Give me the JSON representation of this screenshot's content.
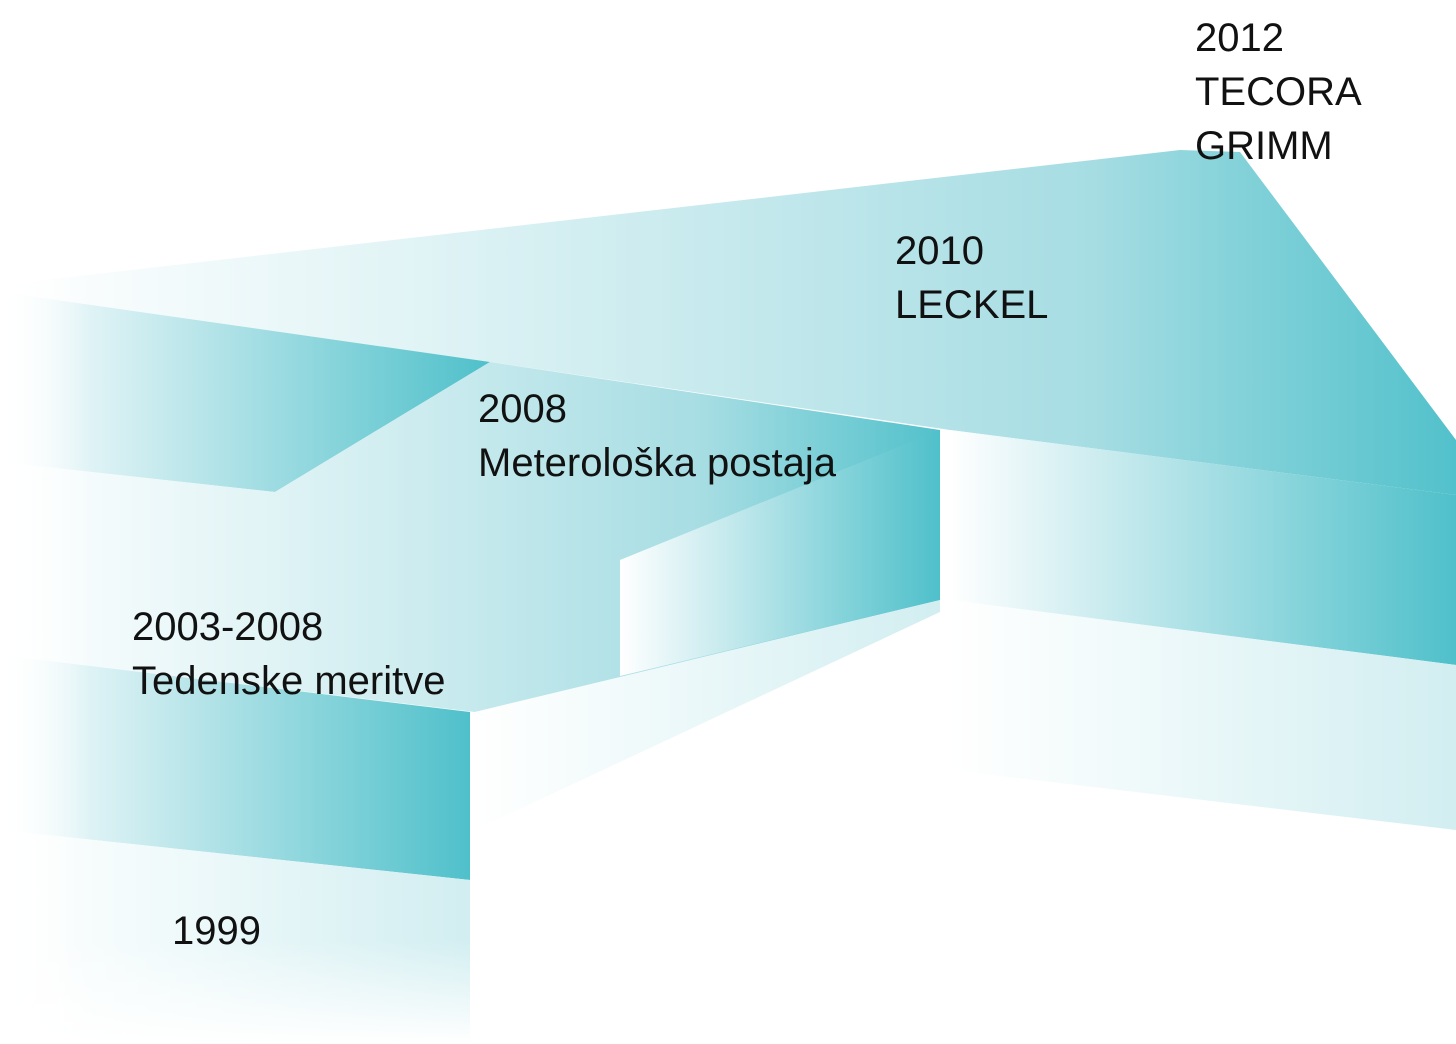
{
  "steps": [
    {
      "lines": [
        "1999"
      ]
    },
    {
      "lines": [
        "2003-2008",
        "Tedenske meritve"
      ]
    },
    {
      "lines": [
        "2008",
        "Meterološka postaja"
      ]
    },
    {
      "lines": [
        "2010",
        "LECKEL"
      ]
    },
    {
      "lines": [
        "2012",
        "TECORA",
        "GRIMM"
      ]
    }
  ]
}
